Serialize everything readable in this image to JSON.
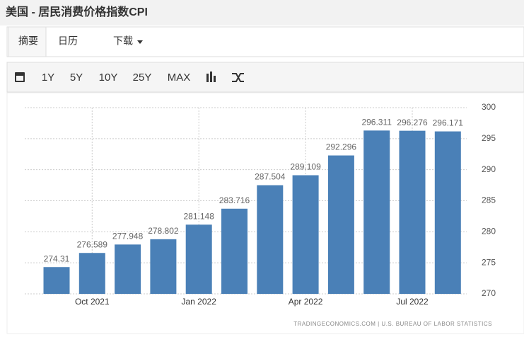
{
  "header": {
    "title": "美国 - 居民消费价格指数CPI"
  },
  "tabs": [
    "摘要",
    "日历",
    "下载"
  ],
  "toolbar": [
    "1Y",
    "5Y",
    "10Y",
    "25Y",
    "MAX"
  ],
  "chart_data": {
    "type": "bar",
    "categories": [
      null,
      "Oct 2021",
      null,
      null,
      "Jan 2022",
      null,
      null,
      "Apr 2022",
      null,
      null,
      "Jul 2022",
      null
    ],
    "values": [
      274.31,
      276.589,
      277.948,
      278.802,
      281.148,
      283.716,
      287.504,
      289.109,
      292.296,
      296.311,
      296.276,
      296.171
    ],
    "color": "#4a80b7",
    "ylim": [
      270,
      300
    ],
    "yticks": [
      270,
      275,
      280,
      285,
      290,
      295,
      300
    ],
    "grid": true,
    "source": "TRADINGECONOMICS.COM | U.S. BUREAU OF LABOR STATISTICS"
  }
}
